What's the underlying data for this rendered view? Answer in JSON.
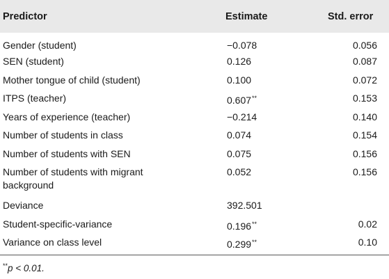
{
  "table": {
    "headers": {
      "predictor": "Predictor",
      "estimate": "Estimate",
      "std_error": "Std. error"
    },
    "rows": [
      {
        "predictor": "Gender (student)",
        "estimate": "−0.078",
        "estimate_mark": "",
        "std_error": "0.056"
      },
      {
        "predictor": "SEN (student)",
        "estimate": "0.126",
        "estimate_mark": "",
        "std_error": "0.087"
      },
      {
        "predictor": "Mother tongue of child (student)",
        "estimate": "0.100",
        "estimate_mark": "",
        "std_error": "0.072"
      },
      {
        "predictor": "ITPS (teacher)",
        "estimate": "0.607",
        "estimate_mark": "**",
        "std_error": "0.153"
      },
      {
        "predictor": "Years of experience (teacher)",
        "estimate": "−0.214",
        "estimate_mark": "",
        "std_error": "0.140"
      },
      {
        "predictor": "Number of students in class",
        "estimate": "0.074",
        "estimate_mark": "",
        "std_error": "0.154"
      },
      {
        "predictor": "Number of students with SEN",
        "estimate": "0.075",
        "estimate_mark": "",
        "std_error": "0.156"
      },
      {
        "predictor": "Number of students with migrant background",
        "estimate": "0.052",
        "estimate_mark": "",
        "std_error": "0.156"
      },
      {
        "predictor": "Deviance",
        "estimate": "392.501",
        "estimate_mark": "",
        "std_error": ""
      },
      {
        "predictor": "Student-specific-variance",
        "estimate": "0.196",
        "estimate_mark": "**",
        "std_error": "0.02"
      },
      {
        "predictor": "Variance on class level",
        "estimate": "0.299",
        "estimate_mark": "**",
        "std_error": "0.10"
      }
    ]
  },
  "footnote": {
    "mark": "**",
    "text": "p < 0.01."
  }
}
